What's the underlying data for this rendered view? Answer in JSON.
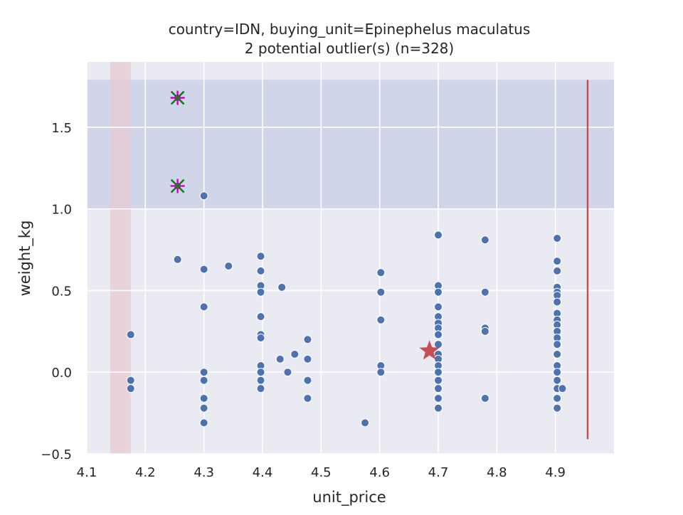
{
  "chart_data": {
    "type": "scatter",
    "title": "country=IDN, buying_unit=Epinephelus maculatus",
    "subtitle": "2 potential outlier(s) (n=328)",
    "xlabel": "unit_price",
    "ylabel": "weight_kg",
    "xlim": [
      4.1,
      5.0
    ],
    "ylim": [
      -0.5,
      1.9
    ],
    "xticks": [
      "4.1",
      "4.2",
      "4.3",
      "4.4",
      "4.5",
      "4.6",
      "4.7",
      "4.8",
      "4.9"
    ],
    "yticks": [
      "−0.5",
      "0.0",
      "0.5",
      "1.0",
      "1.5"
    ],
    "xtick_values": [
      4.1,
      4.2,
      4.3,
      4.4,
      4.5,
      4.6,
      4.7,
      4.8,
      4.9
    ],
    "ytick_values": [
      -0.5,
      0.0,
      0.5,
      1.0,
      1.5
    ],
    "grid": true,
    "colors": {
      "points": "#4c72b0",
      "background": "#eaeaf2",
      "outlier_band": "#c7cde6",
      "x_band": "#e8c8d0",
      "marker": "#c44e52",
      "outlier_x": "#1a7a1a",
      "outlier_plus": "#cc00cc"
    },
    "points": [
      [
        4.175,
        0.23
      ],
      [
        4.175,
        -0.05
      ],
      [
        4.175,
        -0.1
      ],
      [
        4.255,
        0.69
      ],
      [
        4.3,
        1.08
      ],
      [
        4.3,
        0.63
      ],
      [
        4.3,
        0.4
      ],
      [
        4.3,
        0.0
      ],
      [
        4.3,
        -0.05
      ],
      [
        4.3,
        -0.16
      ],
      [
        4.3,
        -0.22
      ],
      [
        4.3,
        -0.31
      ],
      [
        4.342,
        0.65
      ],
      [
        4.397,
        0.71
      ],
      [
        4.397,
        0.62
      ],
      [
        4.397,
        0.53
      ],
      [
        4.397,
        0.49
      ],
      [
        4.397,
        0.34
      ],
      [
        4.397,
        0.23
      ],
      [
        4.397,
        0.21
      ],
      [
        4.397,
        0.04
      ],
      [
        4.397,
        0.0
      ],
      [
        4.397,
        -0.05
      ],
      [
        4.397,
        -0.1
      ],
      [
        4.43,
        0.08
      ],
      [
        4.433,
        0.52
      ],
      [
        4.443,
        0.0
      ],
      [
        4.455,
        0.11
      ],
      [
        4.477,
        0.2
      ],
      [
        4.477,
        0.08
      ],
      [
        4.477,
        -0.05
      ],
      [
        4.477,
        -0.16
      ],
      [
        4.575,
        -0.31
      ],
      [
        4.602,
        0.61
      ],
      [
        4.602,
        0.49
      ],
      [
        4.602,
        0.32
      ],
      [
        4.602,
        0.04
      ],
      [
        4.602,
        0.0
      ],
      [
        4.7,
        0.84
      ],
      [
        4.7,
        0.53
      ],
      [
        4.7,
        0.49
      ],
      [
        4.7,
        0.4
      ],
      [
        4.7,
        0.34
      ],
      [
        4.7,
        0.3
      ],
      [
        4.7,
        0.27
      ],
      [
        4.7,
        0.23
      ],
      [
        4.7,
        0.17
      ],
      [
        4.7,
        0.11
      ],
      [
        4.7,
        0.08
      ],
      [
        4.7,
        0.04
      ],
      [
        4.7,
        0.0
      ],
      [
        4.7,
        -0.05
      ],
      [
        4.7,
        -0.1
      ],
      [
        4.7,
        -0.16
      ],
      [
        4.7,
        -0.22
      ],
      [
        4.78,
        0.81
      ],
      [
        4.78,
        0.49
      ],
      [
        4.78,
        0.27
      ],
      [
        4.78,
        0.25
      ],
      [
        4.78,
        -0.16
      ],
      [
        4.903,
        0.82
      ],
      [
        4.903,
        0.68
      ],
      [
        4.903,
        0.62
      ],
      [
        4.903,
        0.52
      ],
      [
        4.903,
        0.49
      ],
      [
        4.903,
        0.47
      ],
      [
        4.903,
        0.43
      ],
      [
        4.903,
        0.36
      ],
      [
        4.903,
        0.32
      ],
      [
        4.903,
        0.29
      ],
      [
        4.903,
        0.25
      ],
      [
        4.903,
        0.21
      ],
      [
        4.903,
        0.17
      ],
      [
        4.903,
        0.11
      ],
      [
        4.903,
        0.04
      ],
      [
        4.903,
        0.0
      ],
      [
        4.903,
        -0.05
      ],
      [
        4.903,
        -0.1
      ],
      [
        4.903,
        -0.16
      ],
      [
        4.903,
        -0.22
      ],
      [
        4.912,
        -0.1
      ]
    ],
    "outliers": [
      [
        4.255,
        1.68
      ],
      [
        4.255,
        1.14
      ]
    ],
    "star_marker": [
      4.685,
      0.13
    ],
    "vertical_line": {
      "x": 4.955,
      "y_from": -0.41,
      "y_to": 1.79
    },
    "y_band": [
      1.0,
      1.79
    ],
    "x_band": [
      4.14,
      4.175
    ]
  }
}
